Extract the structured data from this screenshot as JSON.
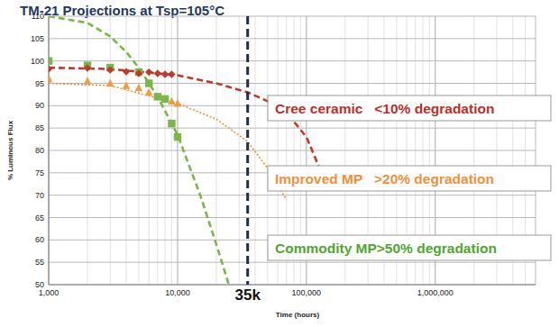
{
  "chart_data": {
    "type": "line",
    "title": "TM-21 Projections at Tsp=105°C",
    "x_label": "Time (hours)",
    "y_label": "% Luminous Flux",
    "log": "x",
    "grid": true,
    "xlim": [
      1000,
      6000000
    ],
    "ylim": [
      50,
      110
    ],
    "xticks": [
      {
        "value": 1000,
        "label": "1,000"
      },
      {
        "value": 10000,
        "label": "10,000"
      },
      {
        "value": 100000,
        "label": "100,000"
      },
      {
        "value": 1000000,
        "label": "1,000,000"
      }
    ],
    "yticks": [
      50,
      55,
      60,
      65,
      70,
      75,
      80,
      85,
      90,
      95,
      100,
      105,
      110
    ],
    "series": [
      {
        "type": "line",
        "color": "#c0392b",
        "line_style": "dashed",
        "x": [
          1000,
          3000,
          10000,
          20000,
          35000,
          50000,
          70000,
          100000,
          150000
        ],
        "values": [
          98.5,
          98.2,
          96.8,
          95,
          93,
          91,
          88.5,
          83,
          71
        ]
      },
      {
        "type": "line",
        "color": "#f0903a",
        "line_style": "dotted",
        "x": [
          1000,
          3000,
          10000,
          20000,
          35000,
          50000,
          70000
        ],
        "values": [
          95,
          94.5,
          90.5,
          87,
          82,
          76,
          69
        ]
      },
      {
        "type": "line",
        "color": "#7ab648",
        "line_style": "dashed",
        "x": [
          1000,
          2000,
          3000,
          4000,
          5000,
          7000,
          10000,
          15000,
          20000,
          25000
        ],
        "values": [
          110,
          108.5,
          105.5,
          102,
          98.5,
          92,
          83.5,
          70,
          59,
          50
        ]
      },
      {
        "type": "scatter",
        "color": "#f29a3c",
        "marker": "triangle",
        "x": [
          1000,
          2000,
          3000,
          4000,
          5000,
          6000,
          7000,
          8000,
          9000,
          10000
        ],
        "values": [
          96,
          95.5,
          95,
          94.5,
          94,
          93,
          92,
          91.5,
          91,
          90.5
        ]
      },
      {
        "type": "scatter",
        "color": "#7ab648",
        "marker": "square",
        "x": [
          1000,
          2000,
          3000,
          5000,
          6000,
          7000,
          8000,
          9000,
          10000
        ],
        "values": [
          100,
          99,
          98.5,
          97.5,
          95,
          92,
          91.5,
          86,
          83
        ]
      },
      {
        "type": "scatter",
        "color": "#c0392b",
        "marker": "diamond",
        "x": [
          1000,
          2000,
          3000,
          4000,
          5000,
          6000,
          7000,
          8000,
          9000
        ],
        "values": [
          98.2,
          98.4,
          98,
          97.6,
          97.2,
          97.5,
          97.2,
          97,
          97
        ]
      }
    ],
    "vlines": [
      {
        "value": 35000,
        "label": "35k",
        "color": "#1f2d50"
      }
    ],
    "annotations": [
      {
        "text": "Cree ceramic   <10% degradation",
        "color": "#b8302a"
      },
      {
        "text": "Improved MP   >20% degradation",
        "color": "#f0903a"
      },
      {
        "text": "Commodity MP>50% degradation",
        "color": "#4ea72e"
      }
    ]
  }
}
